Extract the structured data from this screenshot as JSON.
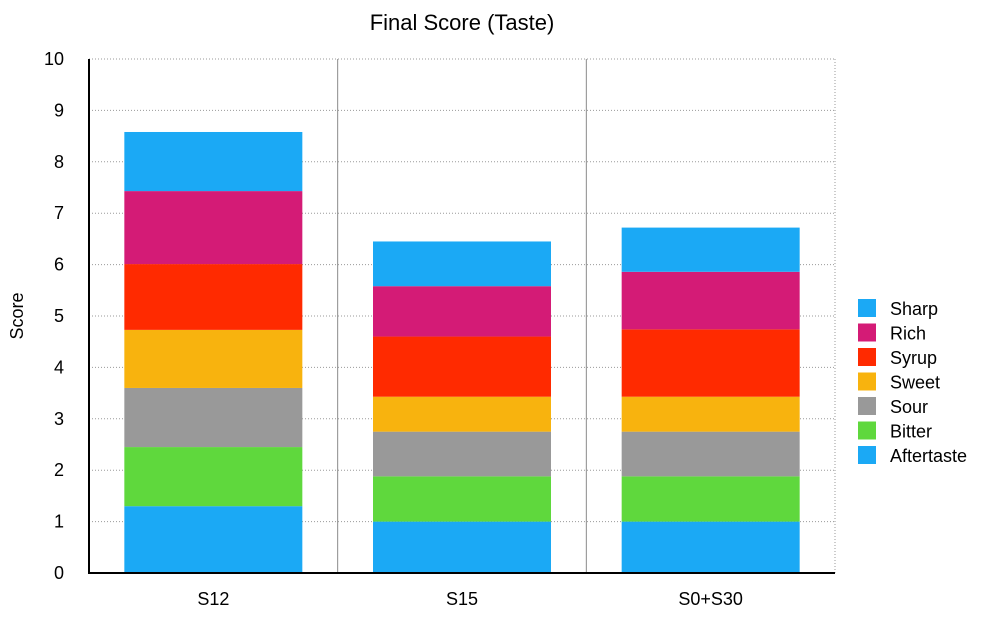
{
  "chart_data": {
    "type": "bar",
    "stacked": true,
    "title": "Final Score (Taste)",
    "xlabel": "",
    "ylabel": "Score",
    "ylim": [
      0,
      10
    ],
    "yticks": [
      0,
      1,
      2,
      3,
      4,
      5,
      6,
      7,
      8,
      9,
      10
    ],
    "grid": true,
    "legend_position": "right",
    "categories": [
      "S12",
      "S15",
      "S0+S30"
    ],
    "series": [
      {
        "name": "Aftertaste",
        "color": "#1ba9f5",
        "values": [
          1.3,
          1.0,
          1.0
        ]
      },
      {
        "name": "Bitter",
        "color": "#5fd83d",
        "values": [
          1.15,
          0.88,
          0.88
        ]
      },
      {
        "name": "Sour",
        "color": "#999999",
        "values": [
          1.15,
          0.87,
          0.87
        ]
      },
      {
        "name": "Sweet",
        "color": "#f8b30e",
        "values": [
          1.13,
          0.68,
          0.68
        ]
      },
      {
        "name": "Syrup",
        "color": "#ff2a00",
        "values": [
          1.28,
          1.17,
          1.31
        ]
      },
      {
        "name": "Rich",
        "color": "#d41b76",
        "values": [
          1.42,
          0.98,
          1.12
        ]
      },
      {
        "name": "Sharp",
        "color": "#1ba9f5",
        "values": [
          1.15,
          0.87,
          0.86
        ]
      }
    ]
  }
}
